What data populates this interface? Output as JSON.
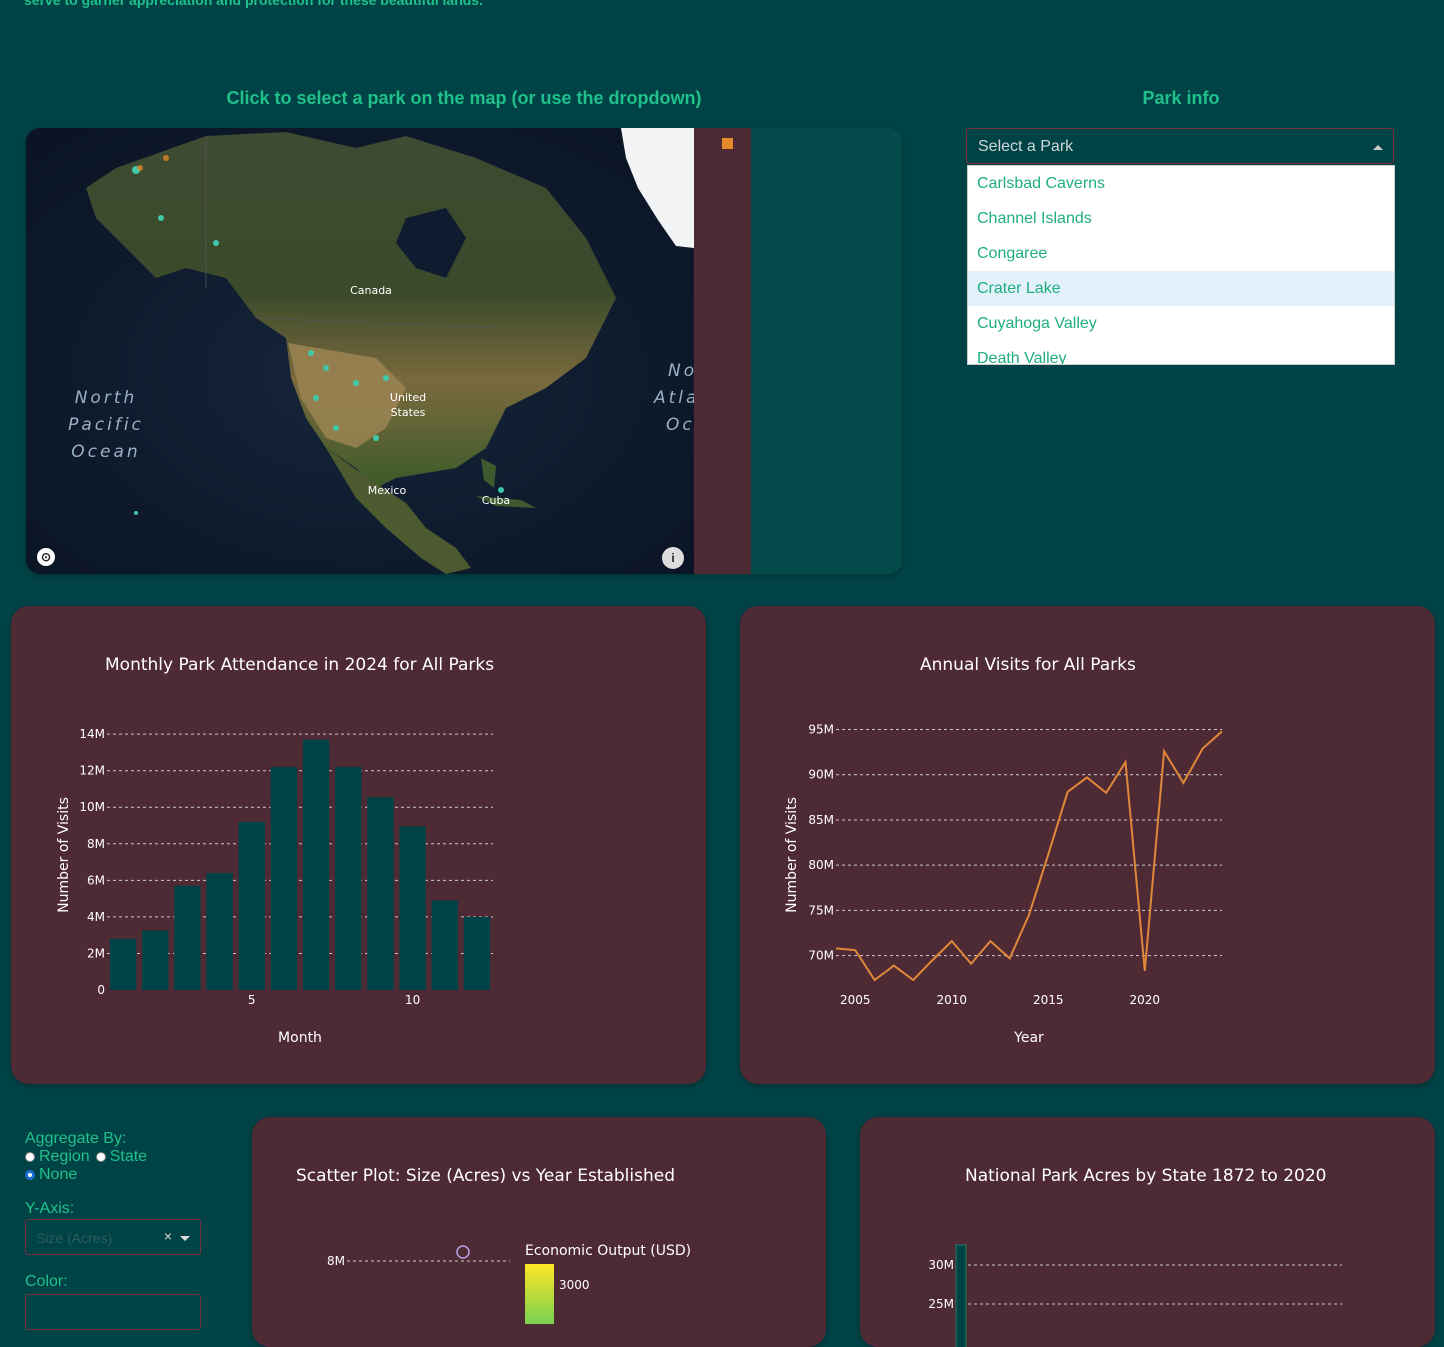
{
  "intro_text": "serve to garner appreciation and protection for these beautiful lands.",
  "map_section": {
    "title": "Click to select a park on the map (or use the dropdown)",
    "labels": {
      "canada": "Canada",
      "united_states_1": "United",
      "united_states_2": "States",
      "mexico": "Mexico",
      "cuba": "Cuba",
      "npo_1": "North",
      "npo_2": "Pacific",
      "npo_3": "Ocean",
      "nao_1": "No",
      "nao_2": "Atla",
      "nao_3": "Oc"
    },
    "legend_color": "#e58a2a"
  },
  "park_info": {
    "title": "Park info",
    "placeholder": "Select a Park",
    "options": [
      "Carlsbad Caverns",
      "Channel Islands",
      "Congaree",
      "Crater Lake",
      "Cuyahoga Valley",
      "Death Valley"
    ],
    "highlighted": "Crater Lake"
  },
  "monthly_chart": {
    "title": "Monthly Park Attendance in 2024 for All Parks",
    "xlabel": "Month",
    "ylabel": "Number of Visits"
  },
  "annual_chart": {
    "title": "Annual Visits for All Parks",
    "xlabel": "Year",
    "ylabel": "Number of Visits"
  },
  "controls": {
    "aggregate_label": "Aggregate By:",
    "options": [
      "Region",
      "State",
      "None"
    ],
    "selected": "None",
    "y_axis_label": "Y-Axis:",
    "y_axis_value": "Size (Acres)",
    "color_label": "Color:"
  },
  "scatter_chart": {
    "title": "Scatter Plot: Size (Acres) vs Year Established",
    "colorbar_title": "Economic Output (USD)",
    "colorbar_tick": "3000"
  },
  "state_chart": {
    "title": "National Park Acres by State 1872 to 2020"
  },
  "chart_data": [
    {
      "type": "bar",
      "title": "Monthly Park Attendance in 2024 for All Parks",
      "xlabel": "Month",
      "ylabel": "Number of Visits",
      "x": [
        1,
        2,
        3,
        4,
        5,
        6,
        7,
        8,
        9,
        10,
        11,
        12
      ],
      "values": [
        2800000,
        3250000,
        5700000,
        6400000,
        9200000,
        12200000,
        13700000,
        12200000,
        10550000,
        8950000,
        4900000,
        4000000
      ],
      "ylim": [
        0,
        14500000
      ],
      "y_ticks": [
        "0",
        "2M",
        "4M",
        "6M",
        "8M",
        "10M",
        "12M",
        "14M"
      ],
      "x_ticks": [
        "5",
        "10"
      ],
      "color": "#004346",
      "grid": true
    },
    {
      "type": "line",
      "title": "Annual Visits for All Parks",
      "xlabel": "Year",
      "ylabel": "Number of Visits",
      "x": [
        2004,
        2005,
        2006,
        2007,
        2008,
        2009,
        2010,
        2011,
        2012,
        2013,
        2014,
        2015,
        2016,
        2017,
        2018,
        2019,
        2020,
        2021,
        2022,
        2023,
        2024
      ],
      "values": [
        70800000,
        70600000,
        67300000,
        68900000,
        67300000,
        69500000,
        71600000,
        69100000,
        71600000,
        69700000,
        74500000,
        81200000,
        88100000,
        89700000,
        88000000,
        91400000,
        68300000,
        92600000,
        89100000,
        92900000,
        94800000
      ],
      "ylim": [
        67300000,
        95500000
      ],
      "y_ticks": [
        "70M",
        "75M",
        "80M",
        "85M",
        "90M",
        "95M"
      ],
      "x_ticks": [
        "2005",
        "2010",
        "2015",
        "2020"
      ],
      "color": "#e0883a",
      "grid": true
    },
    {
      "type": "scatter",
      "title": "Scatter Plot: Size (Acres) vs Year Established",
      "y_ticks": [
        "8M"
      ],
      "colorbar_title": "Economic Output (USD)"
    },
    {
      "type": "bar",
      "title": "National Park Acres by State 1872 to 2020",
      "y_ticks": [
        "25M",
        "30M"
      ]
    }
  ]
}
